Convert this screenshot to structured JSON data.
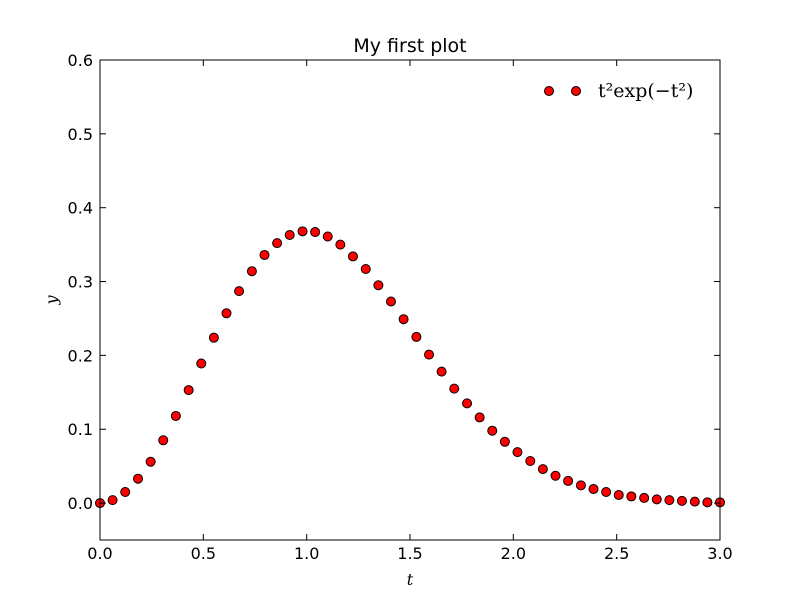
{
  "chart_data": {
    "type": "scatter",
    "title": "My first plot",
    "xlabel": "t",
    "ylabel": "y",
    "xlim": [
      0.0,
      3.0
    ],
    "ylim": [
      -0.05,
      0.6
    ],
    "x_ticks": [
      "0.0",
      "0.5",
      "1.0",
      "1.5",
      "2.0",
      "2.5",
      "3.0"
    ],
    "y_ticks": [
      "0.0",
      "0.1",
      "0.2",
      "0.3",
      "0.4",
      "0.5",
      "0.6"
    ],
    "grid": false,
    "legend_position": "top-right",
    "marker_color": "#ff0000",
    "series": [
      {
        "name": "t²exp(−t²)",
        "x": [
          0.0,
          0.061,
          0.122,
          0.184,
          0.245,
          0.306,
          0.367,
          0.429,
          0.49,
          0.551,
          0.612,
          0.673,
          0.735,
          0.796,
          0.857,
          0.918,
          0.98,
          1.041,
          1.102,
          1.163,
          1.224,
          1.286,
          1.347,
          1.408,
          1.469,
          1.531,
          1.592,
          1.653,
          1.714,
          1.776,
          1.837,
          1.898,
          1.959,
          2.02,
          2.082,
          2.143,
          2.204,
          2.265,
          2.327,
          2.388,
          2.449,
          2.51,
          2.571,
          2.633,
          2.694,
          2.755,
          2.816,
          2.878,
          2.939,
          3.0
        ],
        "values": [
          0.0,
          0.004,
          0.015,
          0.033,
          0.056,
          0.085,
          0.118,
          0.153,
          0.189,
          0.224,
          0.257,
          0.287,
          0.314,
          0.336,
          0.352,
          0.363,
          0.368,
          0.367,
          0.361,
          0.35,
          0.334,
          0.317,
          0.295,
          0.273,
          0.249,
          0.225,
          0.201,
          0.178,
          0.155,
          0.135,
          0.116,
          0.098,
          0.083,
          0.069,
          0.057,
          0.046,
          0.037,
          0.03,
          0.024,
          0.019,
          0.015,
          0.011,
          0.009,
          0.007,
          0.005,
          0.004,
          0.003,
          0.002,
          0.001,
          0.001
        ]
      }
    ]
  }
}
